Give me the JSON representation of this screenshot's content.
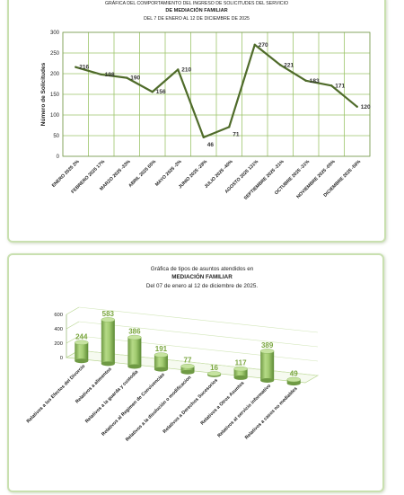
{
  "chart_data": [
    {
      "type": "line",
      "title_lines": [
        "GRÁFICA DEL COMPORTAMIENTO DEL INGRESO DE SOLICITUDES DEL SERVICIO",
        "DE MEDIACIÓN FAMILIAR",
        "DEL 7 DE ENERO AL 12 DE DICIEMBRE DE 2025"
      ],
      "ylabel": "Número de Solicitudes",
      "ylim": [
        0,
        300
      ],
      "yticks": [
        0,
        50,
        100,
        150,
        200,
        250,
        300
      ],
      "grid": true,
      "categories": [
        "ENERO 2025 2%",
        "FEBRERO 2025 17%",
        "MARZO 2025 -33%",
        "ABRIL 2025 65%",
        "MAYO 2025 -2%",
        "JUNIO 2025 -28%",
        "JULIO 2025 -40%",
        "AGOSTO 2025 131%",
        "SEPTIEMBRE 2025 -31%",
        "OCTUBRE 2025 -31%",
        "NOVIEMBRE 2025 -05%",
        "DICIEMBRE 2025 -56%"
      ],
      "values": [
        216,
        198,
        190,
        156,
        210,
        46,
        71,
        270,
        221,
        183,
        171,
        120
      ],
      "color": "#4f6b2a"
    },
    {
      "type": "bar",
      "title_lines": [
        "Gráfica de tipos de asuntos atendidos en",
        "MEDIACIÓN FAMILIAR",
        "Del 07 de enero al 12 de diciembre de 2025."
      ],
      "ylim": [
        0,
        600
      ],
      "yticks": [
        0,
        200,
        400,
        600
      ],
      "categories": [
        "Relativos a los Efectos del Divorcio",
        "Relativos a alimentos",
        "Relativos a la guarda y custodia",
        "Relativos al Regimen de Convivencias",
        "Relativos a la disolución o modificacion",
        "Relativos a Derechos Sucesorios",
        "Relativos a Otros Asuntos",
        "Relativos al servicio informativo",
        "Relativos a casos no mediables"
      ],
      "values": [
        244,
        583,
        386,
        191,
        77,
        16,
        117,
        389,
        49
      ],
      "color": "#a9cf7c"
    }
  ]
}
